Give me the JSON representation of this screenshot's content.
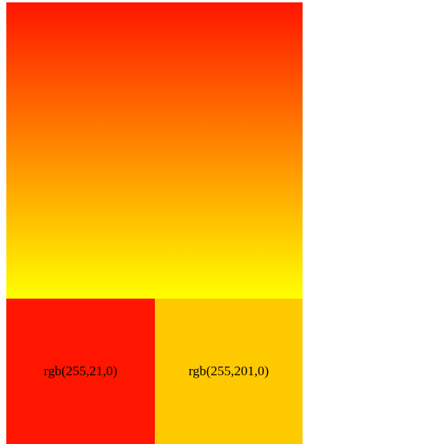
{
  "gradient": {
    "colors": {
      "top": "#ff1500",
      "bottom": "#ffff00"
    }
  },
  "swatches": [
    {
      "label": "rgb(255,21,0)",
      "color": "#ff1500"
    },
    {
      "label": "rgb(255,201,0)",
      "color": "#ffc900"
    }
  ]
}
